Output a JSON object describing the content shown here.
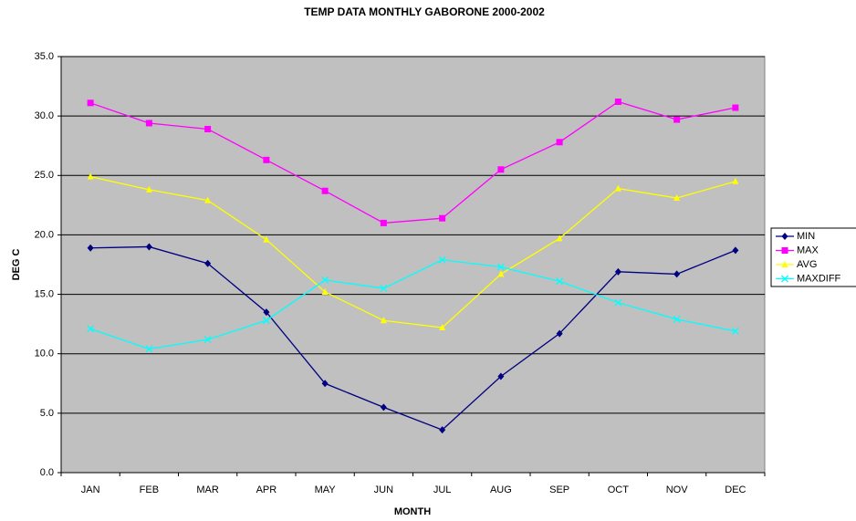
{
  "chart_data": {
    "type": "line",
    "title": "TEMP DATA MONTHLY GABORONE 2000-2002",
    "x_label": "MONTH",
    "y_label": "DEG C",
    "categories": [
      "JAN",
      "FEB",
      "MAR",
      "APR",
      "MAY",
      "JUN",
      "JUL",
      "AUG",
      "SEP",
      "OCT",
      "NOV",
      "DEC"
    ],
    "series": [
      {
        "name": "MIN",
        "color": "#000080",
        "marker": "diamond",
        "values": [
          18.9,
          19.0,
          17.6,
          13.5,
          7.5,
          5.5,
          3.6,
          8.1,
          11.7,
          16.9,
          16.7,
          18.7
        ]
      },
      {
        "name": "MAX",
        "color": "#ff00ff",
        "marker": "square",
        "values": [
          31.1,
          29.4,
          28.9,
          26.3,
          23.7,
          21.0,
          21.4,
          25.5,
          27.8,
          31.2,
          29.7,
          30.7
        ]
      },
      {
        "name": "AVG",
        "color": "#ffff00",
        "marker": "triangle",
        "values": [
          24.9,
          23.8,
          22.9,
          19.6,
          15.2,
          12.8,
          12.2,
          16.7,
          19.7,
          23.9,
          23.1,
          24.5
        ]
      },
      {
        "name": "MAXDIFF",
        "color": "#00ffff",
        "marker": "x",
        "values": [
          12.1,
          10.4,
          11.2,
          12.8,
          16.2,
          15.5,
          17.9,
          17.3,
          16.1,
          14.3,
          12.9,
          11.9
        ]
      }
    ],
    "ylim": [
      0,
      35
    ],
    "yticks": [
      {
        "value": 0,
        "label": "0.0"
      },
      {
        "value": 5,
        "label": "5.0"
      },
      {
        "value": 10,
        "label": "10.0"
      },
      {
        "value": 15,
        "label": "15.0"
      },
      {
        "value": 20,
        "label": "20.0"
      },
      {
        "value": 25,
        "label": "25.0"
      },
      {
        "value": 30,
        "label": "30.0"
      },
      {
        "value": 35,
        "label": "35.0"
      }
    ],
    "grid": true,
    "plot_background": "#c0c0c0",
    "legend": "right"
  }
}
